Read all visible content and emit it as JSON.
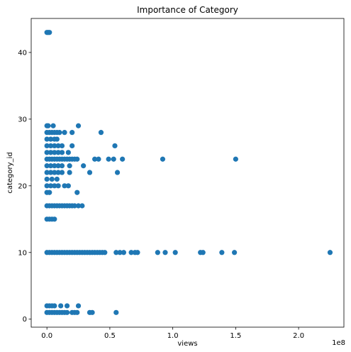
{
  "chart_data": {
    "type": "scatter",
    "title": "Importance of Category",
    "xlabel": "views",
    "ylabel": "category_id",
    "x_offset_label": "1e8",
    "xlim": [
      -12500000,
      236000000
    ],
    "ylim": [
      -1.2,
      45.1
    ],
    "xticks": [
      0,
      50000000,
      100000000,
      150000000,
      200000000
    ],
    "xtick_labels": [
      "0.0",
      "0.5",
      "1.0",
      "1.5",
      "2.0"
    ],
    "yticks": [
      0,
      10,
      20,
      30,
      40
    ],
    "ytick_labels": [
      "0",
      "10",
      "20",
      "30",
      "40"
    ],
    "grid": false,
    "marker_color": "#1f77b4",
    "series": [
      {
        "points": [
          [
            0,
            43
          ],
          [
            1000000,
            43
          ],
          [
            2000000,
            43
          ],
          [
            0,
            29
          ],
          [
            1000000,
            29
          ],
          [
            5000000,
            29
          ],
          [
            25000000,
            29
          ],
          [
            0,
            28
          ],
          [
            2000000,
            28
          ],
          [
            4000000,
            28
          ],
          [
            6000000,
            28
          ],
          [
            8000000,
            28
          ],
          [
            10000000,
            28
          ],
          [
            14000000,
            28
          ],
          [
            20000000,
            28
          ],
          [
            43000000,
            28
          ],
          [
            0,
            27
          ],
          [
            3000000,
            27
          ],
          [
            6000000,
            27
          ],
          [
            8000000,
            27
          ],
          [
            0,
            26
          ],
          [
            3000000,
            26
          ],
          [
            6000000,
            26
          ],
          [
            9000000,
            26
          ],
          [
            12000000,
            26
          ],
          [
            20000000,
            26
          ],
          [
            54000000,
            26
          ],
          [
            0,
            25
          ],
          [
            3000000,
            25
          ],
          [
            6000000,
            25
          ],
          [
            9000000,
            25
          ],
          [
            12000000,
            25
          ],
          [
            17000000,
            25
          ],
          [
            0,
            24
          ],
          [
            2000000,
            24
          ],
          [
            4000000,
            24
          ],
          [
            6000000,
            24
          ],
          [
            8000000,
            24
          ],
          [
            10000000,
            24
          ],
          [
            12000000,
            24
          ],
          [
            14000000,
            24
          ],
          [
            16000000,
            24
          ],
          [
            18000000,
            24
          ],
          [
            20000000,
            24
          ],
          [
            22000000,
            24
          ],
          [
            24000000,
            24
          ],
          [
            38000000,
            24
          ],
          [
            41000000,
            24
          ],
          [
            49000000,
            24
          ],
          [
            53000000,
            24
          ],
          [
            60000000,
            24
          ],
          [
            92000000,
            24
          ],
          [
            150000000,
            24
          ],
          [
            0,
            23
          ],
          [
            3000000,
            23
          ],
          [
            6000000,
            23
          ],
          [
            9000000,
            23
          ],
          [
            12000000,
            23
          ],
          [
            18000000,
            23
          ],
          [
            29000000,
            23
          ],
          [
            0,
            22
          ],
          [
            3000000,
            22
          ],
          [
            6000000,
            22
          ],
          [
            9000000,
            22
          ],
          [
            12000000,
            22
          ],
          [
            18000000,
            22
          ],
          [
            34000000,
            22
          ],
          [
            56000000,
            22
          ],
          [
            0,
            21
          ],
          [
            4000000,
            21
          ],
          [
            8000000,
            21
          ],
          [
            0,
            20
          ],
          [
            3000000,
            20
          ],
          [
            6000000,
            20
          ],
          [
            9000000,
            20
          ],
          [
            14000000,
            20
          ],
          [
            17000000,
            20
          ],
          [
            0,
            19
          ],
          [
            2000000,
            19
          ],
          [
            24000000,
            19
          ],
          [
            0,
            17
          ],
          [
            2000000,
            17
          ],
          [
            4000000,
            17
          ],
          [
            6000000,
            17
          ],
          [
            8000000,
            17
          ],
          [
            10000000,
            17
          ],
          [
            12000000,
            17
          ],
          [
            14000000,
            17
          ],
          [
            16000000,
            17
          ],
          [
            18000000,
            17
          ],
          [
            20000000,
            17
          ],
          [
            22000000,
            17
          ],
          [
            25000000,
            17
          ],
          [
            28000000,
            17
          ],
          [
            0,
            15
          ],
          [
            2000000,
            15
          ],
          [
            4000000,
            15
          ],
          [
            6000000,
            15
          ],
          [
            0,
            10
          ],
          [
            2000000,
            10
          ],
          [
            4000000,
            10
          ],
          [
            6000000,
            10
          ],
          [
            8000000,
            10
          ],
          [
            10000000,
            10
          ],
          [
            12000000,
            10
          ],
          [
            14000000,
            10
          ],
          [
            16000000,
            10
          ],
          [
            18000000,
            10
          ],
          [
            20000000,
            10
          ],
          [
            22000000,
            10
          ],
          [
            24000000,
            10
          ],
          [
            26000000,
            10
          ],
          [
            28000000,
            10
          ],
          [
            30000000,
            10
          ],
          [
            32000000,
            10
          ],
          [
            34000000,
            10
          ],
          [
            36000000,
            10
          ],
          [
            38000000,
            10
          ],
          [
            40000000,
            10
          ],
          [
            42000000,
            10
          ],
          [
            44000000,
            10
          ],
          [
            46000000,
            10
          ],
          [
            55000000,
            10
          ],
          [
            58000000,
            10
          ],
          [
            61000000,
            10
          ],
          [
            67000000,
            10
          ],
          [
            70000000,
            10
          ],
          [
            72000000,
            10
          ],
          [
            88000000,
            10
          ],
          [
            94000000,
            10
          ],
          [
            102000000,
            10
          ],
          [
            122000000,
            10
          ],
          [
            124000000,
            10
          ],
          [
            139000000,
            10
          ],
          [
            149000000,
            10
          ],
          [
            225000000,
            10
          ],
          [
            0,
            2
          ],
          [
            2000000,
            2
          ],
          [
            4000000,
            2
          ],
          [
            6000000,
            2
          ],
          [
            11000000,
            2
          ],
          [
            16000000,
            2
          ],
          [
            25000000,
            2
          ],
          [
            0,
            1
          ],
          [
            2000000,
            1
          ],
          [
            4000000,
            1
          ],
          [
            6000000,
            1
          ],
          [
            8000000,
            1
          ],
          [
            10000000,
            1
          ],
          [
            12000000,
            1
          ],
          [
            14000000,
            1
          ],
          [
            16000000,
            1
          ],
          [
            20000000,
            1
          ],
          [
            22000000,
            1
          ],
          [
            24000000,
            1
          ],
          [
            34000000,
            1
          ],
          [
            36000000,
            1
          ],
          [
            55000000,
            1
          ]
        ]
      }
    ]
  }
}
